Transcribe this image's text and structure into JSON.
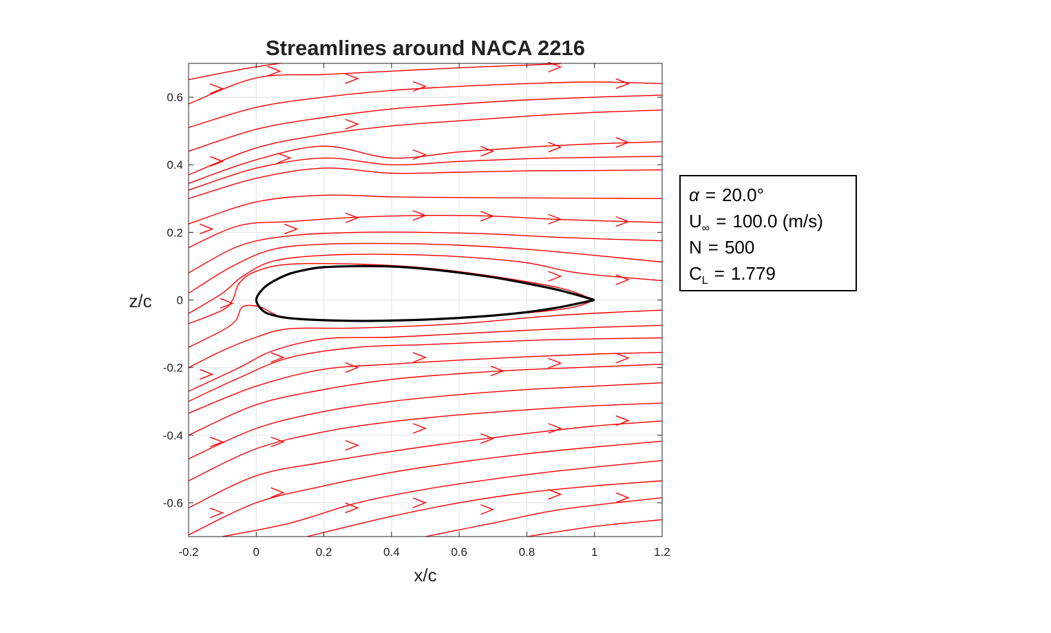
{
  "chart_data": {
    "type": "line",
    "title": "Streamlines around NACA 2216",
    "xlabel": "x/c",
    "ylabel": "z/c",
    "xlim": [
      -0.2,
      1.2
    ],
    "ylim": [
      -0.7,
      0.7
    ],
    "xticks": [
      -0.2,
      0,
      0.2,
      0.4,
      0.6,
      0.8,
      1,
      1.2
    ],
    "xtick_labels": [
      "-0.2",
      "0",
      "0.2",
      "0.4",
      "0.6",
      "0.8",
      "1",
      "1.2"
    ],
    "yticks": [
      -0.6,
      -0.4,
      -0.2,
      0,
      0.2,
      0.4,
      0.6
    ],
    "ytick_labels": [
      "-0.6",
      "-0.4",
      "-0.2",
      "0",
      "0.2",
      "0.4",
      "0.6"
    ],
    "grid": true,
    "airfoil": {
      "color": "#000000",
      "upper": [
        [
          1.0,
          0.0
        ],
        [
          0.9,
          0.028
        ],
        [
          0.8,
          0.049
        ],
        [
          0.7,
          0.067
        ],
        [
          0.6,
          0.081
        ],
        [
          0.5,
          0.092
        ],
        [
          0.4,
          0.099
        ],
        [
          0.3,
          0.1
        ],
        [
          0.2,
          0.097
        ],
        [
          0.15,
          0.09
        ],
        [
          0.1,
          0.078
        ],
        [
          0.05,
          0.055
        ],
        [
          0.02,
          0.033
        ],
        [
          0.0,
          0.0
        ]
      ],
      "lower": [
        [
          0.0,
          0.0
        ],
        [
          0.02,
          -0.032
        ],
        [
          0.05,
          -0.045
        ],
        [
          0.1,
          -0.054
        ],
        [
          0.2,
          -0.06
        ],
        [
          0.3,
          -0.062
        ],
        [
          0.4,
          -0.061
        ],
        [
          0.5,
          -0.058
        ],
        [
          0.6,
          -0.053
        ],
        [
          0.7,
          -0.046
        ],
        [
          0.8,
          -0.036
        ],
        [
          0.9,
          -0.021
        ],
        [
          1.0,
          0.0
        ]
      ]
    },
    "streamlines": {
      "color": "#ff0000",
      "upper": [
        [
          [
            -0.2,
            0.652
          ],
          [
            0.0,
            0.69
          ],
          [
            0.2,
            0.715
          ],
          [
            0.4,
            0.735
          ],
          [
            0.6,
            0.75
          ],
          [
            0.8,
            0.762
          ],
          [
            1.0,
            0.772
          ],
          [
            1.2,
            0.78
          ]
        ],
        [
          [
            -0.2,
            0.58
          ],
          [
            0.0,
            0.657
          ],
          [
            0.2,
            0.667
          ],
          [
            0.4,
            0.677
          ],
          [
            0.6,
            0.687
          ],
          [
            0.8,
            0.695
          ],
          [
            0.9,
            0.699
          ]
        ],
        [
          [
            -0.2,
            0.51
          ],
          [
            0.0,
            0.57
          ],
          [
            0.2,
            0.6
          ],
          [
            0.4,
            0.62
          ],
          [
            0.6,
            0.632
          ],
          [
            0.8,
            0.64
          ],
          [
            1.0,
            0.645
          ],
          [
            1.2,
            0.64
          ]
        ],
        [
          [
            -0.2,
            0.44
          ],
          [
            0.0,
            0.505
          ],
          [
            0.2,
            0.54
          ],
          [
            0.4,
            0.565
          ],
          [
            0.6,
            0.58
          ],
          [
            0.8,
            0.592
          ],
          [
            1.0,
            0.6
          ],
          [
            1.2,
            0.606
          ]
        ],
        [
          [
            -0.2,
            0.37
          ],
          [
            0.0,
            0.45
          ],
          [
            0.2,
            0.49
          ],
          [
            0.4,
            0.515
          ],
          [
            0.6,
            0.53
          ],
          [
            0.8,
            0.544
          ],
          [
            1.0,
            0.555
          ],
          [
            1.2,
            0.562
          ]
        ],
        [
          [
            -0.2,
            0.345
          ],
          [
            0.0,
            0.415
          ],
          [
            0.2,
            0.455
          ],
          [
            0.4,
            0.42
          ],
          [
            0.6,
            0.438
          ],
          [
            0.8,
            0.452
          ],
          [
            1.0,
            0.462
          ],
          [
            1.2,
            0.468
          ]
        ],
        [
          [
            -0.2,
            0.325
          ],
          [
            0.0,
            0.39
          ],
          [
            0.2,
            0.42
          ],
          [
            0.4,
            0.4
          ],
          [
            0.6,
            0.41
          ],
          [
            0.8,
            0.418
          ],
          [
            1.0,
            0.422
          ],
          [
            1.2,
            0.425
          ]
        ],
        [
          [
            -0.2,
            0.3
          ],
          [
            0.0,
            0.36
          ],
          [
            0.2,
            0.39
          ],
          [
            0.4,
            0.375
          ],
          [
            0.6,
            0.378
          ],
          [
            0.8,
            0.382
          ],
          [
            1.0,
            0.383
          ],
          [
            1.2,
            0.385
          ]
        ],
        [
          [
            -0.2,
            0.225
          ],
          [
            0.0,
            0.29
          ],
          [
            0.2,
            0.31
          ],
          [
            0.4,
            0.305
          ],
          [
            0.6,
            0.303
          ],
          [
            0.8,
            0.302
          ],
          [
            1.0,
            0.301
          ],
          [
            1.2,
            0.3
          ]
        ],
        [
          [
            -0.2,
            0.155
          ],
          [
            -0.05,
            0.22
          ],
          [
            0.1,
            0.232
          ],
          [
            0.3,
            0.245
          ],
          [
            0.5,
            0.25
          ],
          [
            0.7,
            0.248
          ],
          [
            0.9,
            0.238
          ],
          [
            1.2,
            0.229
          ]
        ],
        [
          [
            -0.2,
            0.08
          ],
          [
            -0.05,
            0.16
          ],
          [
            0.1,
            0.19
          ],
          [
            0.3,
            0.2
          ],
          [
            0.5,
            0.2
          ],
          [
            0.7,
            0.195
          ],
          [
            0.9,
            0.185
          ],
          [
            1.2,
            0.175
          ]
        ],
        [
          [
            -0.2,
            0.02
          ],
          [
            -0.07,
            0.1
          ],
          [
            0.05,
            0.15
          ],
          [
            0.2,
            0.165
          ],
          [
            0.4,
            0.167
          ],
          [
            0.6,
            0.162
          ],
          [
            0.8,
            0.15
          ],
          [
            1.0,
            0.132
          ],
          [
            1.2,
            0.112
          ]
        ],
        [
          [
            -0.2,
            -0.04
          ],
          [
            -0.1,
            0.02
          ],
          [
            -0.04,
            0.07
          ],
          [
            0.05,
            0.115
          ],
          [
            0.2,
            0.132
          ],
          [
            0.4,
            0.135
          ],
          [
            0.6,
            0.128
          ],
          [
            0.8,
            0.11
          ],
          [
            0.95,
            0.08
          ],
          [
            1.2,
            0.057
          ]
        ],
        [
          [
            -0.2,
            -0.07
          ],
          [
            -0.1,
            -0.03
          ],
          [
            -0.07,
            0.0
          ],
          [
            -0.05,
            0.05
          ],
          [
            0.0,
            0.085
          ],
          [
            0.1,
            0.106
          ],
          [
            0.3,
            0.106
          ],
          [
            0.5,
            0.095
          ],
          [
            0.7,
            0.07
          ],
          [
            0.9,
            0.035
          ],
          [
            1.0,
            0.0
          ]
        ]
      ],
      "lower": [
        [
          [
            -0.2,
            -0.14
          ],
          [
            -0.1,
            -0.09
          ],
          [
            -0.06,
            -0.06
          ],
          [
            -0.04,
            -0.02
          ],
          [
            0.01,
            -0.02
          ],
          [
            0.05,
            -0.04
          ],
          [
            0.1,
            -0.055
          ],
          [
            0.3,
            -0.062
          ],
          [
            0.6,
            -0.052
          ],
          [
            0.9,
            -0.028
          ],
          [
            1.0,
            -0.0
          ]
        ],
        [
          [
            -0.2,
            -0.2
          ],
          [
            -0.1,
            -0.15
          ],
          [
            0.0,
            -0.11
          ],
          [
            0.1,
            -0.085
          ],
          [
            0.3,
            -0.083
          ],
          [
            0.6,
            -0.07
          ],
          [
            0.9,
            -0.045
          ],
          [
            1.2,
            -0.03
          ]
        ],
        [
          [
            -0.2,
            -0.27
          ],
          [
            -0.05,
            -0.2
          ],
          [
            0.05,
            -0.15
          ],
          [
            0.2,
            -0.115
          ],
          [
            0.4,
            -0.11
          ],
          [
            0.6,
            -0.1
          ],
          [
            0.9,
            -0.085
          ],
          [
            1.2,
            -0.075
          ]
        ],
        [
          [
            -0.2,
            -0.3
          ],
          [
            -0.05,
            -0.23
          ],
          [
            0.1,
            -0.17
          ],
          [
            0.3,
            -0.14
          ],
          [
            0.5,
            -0.132
          ],
          [
            0.7,
            -0.124
          ],
          [
            0.9,
            -0.117
          ],
          [
            1.2,
            -0.112
          ]
        ],
        [
          [
            -0.2,
            -0.335
          ],
          [
            0.0,
            -0.255
          ],
          [
            0.2,
            -0.205
          ],
          [
            0.4,
            -0.19
          ],
          [
            0.6,
            -0.178
          ],
          [
            0.8,
            -0.168
          ],
          [
            1.0,
            -0.16
          ],
          [
            1.2,
            -0.155
          ]
        ],
        [
          [
            -0.2,
            -0.4
          ],
          [
            0.0,
            -0.31
          ],
          [
            0.2,
            -0.265
          ],
          [
            0.4,
            -0.235
          ],
          [
            0.6,
            -0.218
          ],
          [
            0.8,
            -0.206
          ],
          [
            1.0,
            -0.198
          ],
          [
            1.2,
            -0.19
          ]
        ],
        [
          [
            -0.2,
            -0.47
          ],
          [
            0.0,
            -0.38
          ],
          [
            0.2,
            -0.33
          ],
          [
            0.4,
            -0.3
          ],
          [
            0.6,
            -0.28
          ],
          [
            0.8,
            -0.265
          ],
          [
            1.0,
            -0.255
          ],
          [
            1.2,
            -0.245
          ]
        ],
        [
          [
            -0.2,
            -0.535
          ],
          [
            0.0,
            -0.44
          ],
          [
            0.2,
            -0.39
          ],
          [
            0.4,
            -0.36
          ],
          [
            0.6,
            -0.34
          ],
          [
            0.8,
            -0.325
          ],
          [
            1.0,
            -0.313
          ],
          [
            1.2,
            -0.305
          ]
        ],
        [
          [
            -0.2,
            -0.615
          ],
          [
            0.0,
            -0.52
          ],
          [
            0.2,
            -0.48
          ],
          [
            0.4,
            -0.448
          ],
          [
            0.6,
            -0.42
          ],
          [
            0.8,
            -0.395
          ],
          [
            1.0,
            -0.373
          ],
          [
            1.2,
            -0.358
          ]
        ],
        [
          [
            -0.2,
            -0.695
          ],
          [
            0.0,
            -0.6
          ],
          [
            0.2,
            -0.55
          ],
          [
            0.4,
            -0.51
          ],
          [
            0.6,
            -0.48
          ],
          [
            0.8,
            -0.455
          ],
          [
            1.0,
            -0.435
          ],
          [
            1.2,
            -0.418
          ]
        ],
        [
          [
            -0.1,
            -0.7
          ],
          [
            0.1,
            -0.66
          ],
          [
            0.3,
            -0.6
          ],
          [
            0.5,
            -0.56
          ],
          [
            0.7,
            -0.53
          ],
          [
            0.9,
            -0.505
          ],
          [
            1.2,
            -0.475
          ]
        ],
        [
          [
            0.15,
            -0.7
          ],
          [
            0.4,
            -0.64
          ],
          [
            0.6,
            -0.6
          ],
          [
            0.8,
            -0.57
          ],
          [
            1.0,
            -0.55
          ],
          [
            1.2,
            -0.535
          ]
        ],
        [
          [
            0.5,
            -0.7
          ],
          [
            0.7,
            -0.66
          ],
          [
            0.9,
            -0.62
          ],
          [
            1.2,
            -0.585
          ]
        ],
        [
          [
            0.8,
            -0.7
          ],
          [
            1.0,
            -0.67
          ],
          [
            1.2,
            -0.65
          ]
        ]
      ],
      "arrows": [
        [
          0.07,
          0.677
        ],
        [
          0.3,
          0.655
        ],
        [
          -0.1,
          0.625
        ],
        [
          0.5,
          0.632
        ],
        [
          0.9,
          0.689
        ],
        [
          1.1,
          0.64
        ],
        [
          0.3,
          0.52
        ],
        [
          0.5,
          0.43
        ],
        [
          0.7,
          0.44
        ],
        [
          0.9,
          0.452
        ],
        [
          1.1,
          0.466
        ],
        [
          -0.1,
          0.41
        ],
        [
          0.1,
          0.42
        ],
        [
          -0.13,
          0.21
        ],
        [
          0.12,
          0.21
        ],
        [
          0.3,
          0.243
        ],
        [
          0.5,
          0.25
        ],
        [
          0.7,
          0.248
        ],
        [
          0.9,
          0.239
        ],
        [
          1.1,
          0.232
        ],
        [
          0.9,
          0.07
        ],
        [
          1.1,
          0.06
        ],
        [
          -0.07,
          -0.01
        ],
        [
          0.08,
          -0.17
        ],
        [
          0.3,
          -0.2
        ],
        [
          0.5,
          -0.17
        ],
        [
          0.73,
          -0.21
        ],
        [
          0.9,
          -0.187
        ],
        [
          1.1,
          -0.172
        ],
        [
          -0.13,
          -0.22
        ],
        [
          -0.1,
          -0.42
        ],
        [
          0.08,
          -0.42
        ],
        [
          0.3,
          -0.43
        ],
        [
          0.5,
          -0.38
        ],
        [
          0.7,
          -0.41
        ],
        [
          0.9,
          -0.38
        ],
        [
          1.1,
          -0.357
        ],
        [
          0.08,
          -0.57
        ],
        [
          -0.1,
          -0.63
        ],
        [
          0.3,
          -0.615
        ],
        [
          0.5,
          -0.6
        ],
        [
          0.7,
          -0.62
        ],
        [
          0.9,
          -0.575
        ],
        [
          1.1,
          -0.585
        ]
      ]
    }
  },
  "info_box": {
    "alpha_symbol": "α",
    "alpha_value": "20.0°",
    "uinf_symbol": "U",
    "uinf_sub": "∞",
    "uinf_value": "100.0  (m/s)",
    "n_symbol": "N",
    "n_value": "500",
    "cl_symbol": "C",
    "cl_sub": "L",
    "cl_value": "1.779",
    "eq": "="
  }
}
